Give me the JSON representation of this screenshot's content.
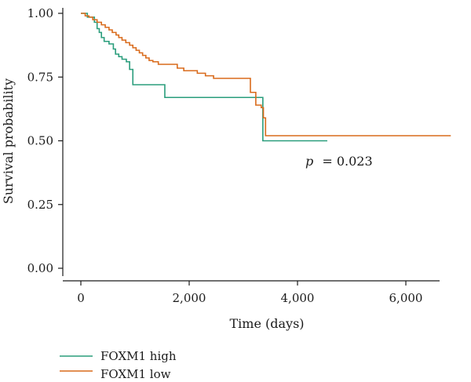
{
  "chart_data": {
    "type": "line",
    "xlabel": "Time (days)",
    "ylabel": "Survival probability",
    "xlim": [
      -300,
      7000
    ],
    "ylim": [
      0,
      1.0
    ],
    "x_ticks": [
      0,
      2000,
      4000,
      6000
    ],
    "x_tick_labels": [
      "0",
      "2,000",
      "4,000",
      "6,000"
    ],
    "y_ticks": [
      0,
      0.25,
      0.5,
      0.75,
      1.0
    ],
    "y_tick_labels": [
      "0.00",
      "0.25",
      "0.50",
      "0.75",
      "1.00"
    ],
    "grid": false,
    "legend_position": "bottom-left",
    "annotation": {
      "p_label": "p",
      "p_value": "= 0.023",
      "x": 4100,
      "y": 0.42
    },
    "series": [
      {
        "name": "FOXM1 high",
        "color": "#2a9d7c",
        "steps": [
          [
            0,
            1.0
          ],
          [
            120,
            0.985
          ],
          [
            250,
            0.965
          ],
          [
            300,
            0.94
          ],
          [
            340,
            0.925
          ],
          [
            380,
            0.905
          ],
          [
            430,
            0.89
          ],
          [
            520,
            0.88
          ],
          [
            600,
            0.86
          ],
          [
            640,
            0.84
          ],
          [
            700,
            0.83
          ],
          [
            760,
            0.82
          ],
          [
            840,
            0.81
          ],
          [
            900,
            0.78
          ],
          [
            960,
            0.72
          ],
          [
            1550,
            0.67
          ],
          [
            3360,
            0.5
          ],
          [
            4550,
            0.5
          ]
        ]
      },
      {
        "name": "FOXM1 low",
        "color": "#d96b1c",
        "steps": [
          [
            0,
            1.0
          ],
          [
            80,
            0.99
          ],
          [
            150,
            0.985
          ],
          [
            220,
            0.975
          ],
          [
            300,
            0.965
          ],
          [
            380,
            0.955
          ],
          [
            450,
            0.945
          ],
          [
            520,
            0.935
          ],
          [
            580,
            0.925
          ],
          [
            650,
            0.915
          ],
          [
            700,
            0.905
          ],
          [
            760,
            0.895
          ],
          [
            830,
            0.885
          ],
          [
            900,
            0.875
          ],
          [
            960,
            0.865
          ],
          [
            1020,
            0.855
          ],
          [
            1080,
            0.845
          ],
          [
            1140,
            0.835
          ],
          [
            1200,
            0.825
          ],
          [
            1260,
            0.815
          ],
          [
            1330,
            0.81
          ],
          [
            1430,
            0.8
          ],
          [
            1780,
            0.785
          ],
          [
            1900,
            0.775
          ],
          [
            2150,
            0.765
          ],
          [
            2300,
            0.755
          ],
          [
            2450,
            0.745
          ],
          [
            3130,
            0.69
          ],
          [
            3230,
            0.64
          ],
          [
            3330,
            0.63
          ],
          [
            3370,
            0.59
          ],
          [
            3410,
            0.52
          ],
          [
            6830,
            0.52
          ]
        ]
      }
    ]
  }
}
